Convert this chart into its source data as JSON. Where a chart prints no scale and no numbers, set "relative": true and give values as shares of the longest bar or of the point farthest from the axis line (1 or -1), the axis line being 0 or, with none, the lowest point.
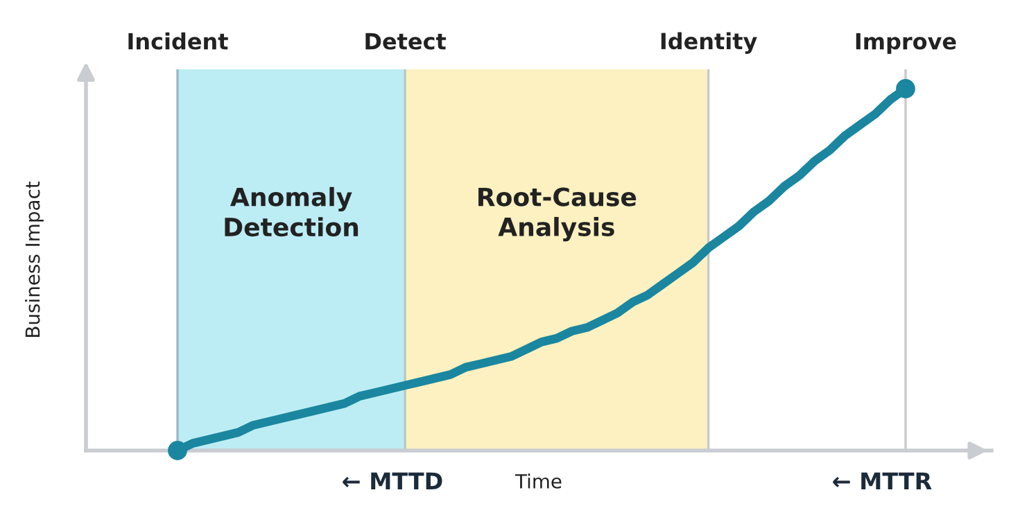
{
  "chart_data": {
    "type": "line",
    "relative": true,
    "xlabel": "Time",
    "ylabel": "Business Impact",
    "tick_labels": "x",
    "marker": "none",
    "line_style": "solid",
    "categories": [
      "Incident",
      null,
      null,
      null,
      null,
      null,
      null,
      null,
      null,
      null,
      null,
      null,
      null,
      null,
      null,
      "Detect",
      null,
      null,
      null,
      null,
      null,
      null,
      null,
      null,
      null,
      null,
      null,
      null,
      null,
      null,
      null,
      null,
      null,
      null,
      null,
      "Identity",
      null,
      null,
      null,
      null,
      null,
      null,
      null,
      null,
      null,
      null,
      null,
      null,
      "Improve"
    ],
    "series": [
      {
        "color": "#1b869f",
        "values": [
          0,
          0.02,
          0.03,
          0.04,
          0.05,
          0.07,
          0.08,
          0.09,
          0.1,
          0.11,
          0.12,
          0.13,
          0.15,
          0.16,
          0.17,
          0.18,
          0.19,
          0.2,
          0.21,
          0.23,
          0.24,
          0.25,
          0.26,
          0.28,
          0.3,
          0.31,
          0.33,
          0.34,
          0.36,
          0.38,
          0.41,
          0.43,
          0.46,
          0.49,
          0.52,
          0.56,
          0.59,
          0.62,
          0.66,
          0.69,
          0.73,
          0.76,
          0.8,
          0.83,
          0.87,
          0.9,
          0.93,
          0.97,
          1
        ]
      }
    ],
    "bands": [
      {
        "axis": "x",
        "from": "Incident",
        "to": "Detect",
        "label": "Anomaly Detection",
        "color": "#bdedf4"
      },
      {
        "axis": "x",
        "from": "Detect",
        "to": "Identity",
        "label": "Root-Cause Analysis",
        "color": "#fdf1c1"
      }
    ],
    "ref_lines": [
      {
        "axis": "x",
        "value": "Incident",
        "color": "#9ab8c4"
      },
      {
        "axis": "x",
        "value": "Detect",
        "color": "#b8c8c4"
      },
      {
        "axis": "x",
        "value": "Identity",
        "color": "#c8c8c8"
      },
      {
        "axis": "x",
        "value": "Improve",
        "color": "#c8c8c8"
      }
    ],
    "annotations": [
      "← MTTD",
      "← MTTR"
    ]
  }
}
